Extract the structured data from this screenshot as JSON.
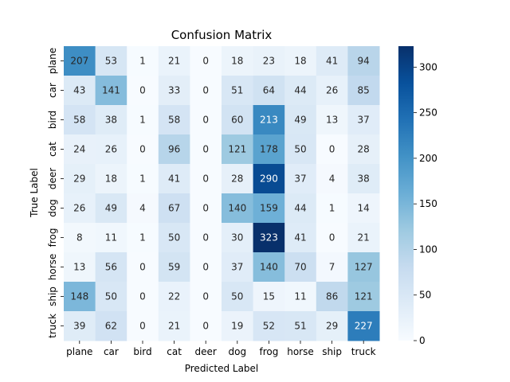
{
  "chart_data": {
    "type": "heatmap",
    "title": "Confusion Matrix",
    "xlabel": "Predicted Label",
    "ylabel": "True Label",
    "x_categories": [
      "plane",
      "car",
      "bird",
      "cat",
      "deer",
      "dog",
      "frog",
      "horse",
      "ship",
      "truck"
    ],
    "y_categories": [
      "plane",
      "car",
      "bird",
      "cat",
      "deer",
      "dog",
      "frog",
      "horse",
      "ship",
      "truck"
    ],
    "values": [
      [
        207,
        53,
        1,
        21,
        0,
        18,
        23,
        18,
        41,
        94
      ],
      [
        43,
        141,
        0,
        33,
        0,
        51,
        64,
        44,
        26,
        85
      ],
      [
        58,
        38,
        1,
        58,
        0,
        60,
        213,
        49,
        13,
        37
      ],
      [
        24,
        26,
        0,
        96,
        0,
        121,
        178,
        50,
        0,
        28
      ],
      [
        29,
        18,
        1,
        41,
        0,
        28,
        290,
        37,
        4,
        38
      ],
      [
        26,
        49,
        4,
        67,
        0,
        140,
        159,
        44,
        1,
        14
      ],
      [
        8,
        11,
        1,
        50,
        0,
        30,
        323,
        41,
        0,
        21
      ],
      [
        13,
        56,
        0,
        59,
        0,
        37,
        140,
        70,
        7,
        127
      ],
      [
        148,
        50,
        0,
        22,
        0,
        50,
        15,
        11,
        86,
        121
      ],
      [
        39,
        62,
        0,
        21,
        0,
        19,
        52,
        51,
        29,
        227
      ]
    ],
    "colorscale": "Blues",
    "color_range": [
      0,
      323
    ],
    "colorbar_ticks": [
      0,
      50,
      100,
      150,
      200,
      250,
      300
    ]
  }
}
